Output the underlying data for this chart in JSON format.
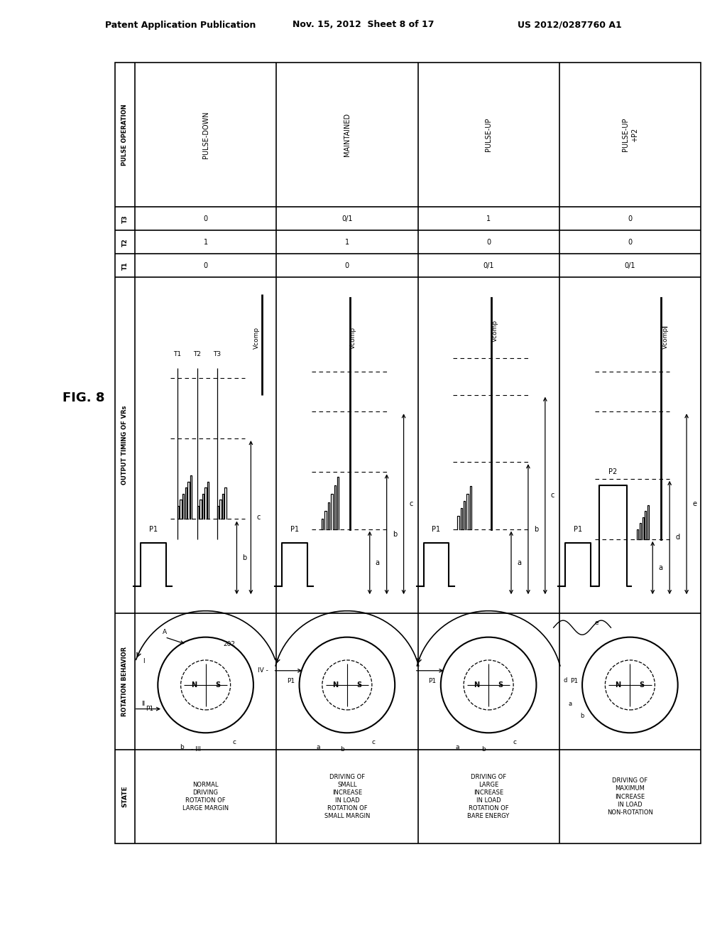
{
  "header_left": "Patent Application Publication",
  "header_center": "Nov. 15, 2012  Sheet 8 of 17",
  "header_right": "US 2012/0287760 A1",
  "fig_label": "FIG. 8",
  "table": {
    "col_headers": [
      "STATE",
      "ROTATION BEHAVIOR",
      "OUTPUT TIMING OF VRs",
      "T1",
      "T2",
      "T3",
      "PULSE OPERATION"
    ],
    "rows": [
      {
        "state": "NORMAL\nDRIVING\nROTATION OF\nLARGE MARGIN",
        "t1": "0",
        "t2": "1",
        "t3": "0",
        "pulse_op": "PULSE-DOWN",
        "timing_levels": [
          "b",
          "c"
        ],
        "timing_markers": [
          "T1",
          "T2",
          "T3"
        ],
        "has_t_markers": true
      },
      {
        "state": "DRIVING OF\nSMALL\nINCREASE\nIN LOAD\nROTATION OF\nSMALL MARGIN",
        "t1": "0",
        "t2": "1",
        "t3": "0/1",
        "pulse_op": "MAINTAINED",
        "timing_levels": [
          "a",
          "b",
          "c"
        ],
        "has_t_markers": false
      },
      {
        "state": "DRIVING OF\nLARGE\nINCREASE\nIN LOAD\nROTATION OF\nBARE ENERGY",
        "t1": "0/1",
        "t2": "0",
        "t3": "1",
        "pulse_op": "PULSE-UP",
        "timing_levels": [
          "a",
          "b",
          "c"
        ],
        "has_t_markers": false
      },
      {
        "state": "DRIVING OF\nMAXIMUM\nINCREASE\nIN LOAD\nNON-ROTATION",
        "t1": "0/1",
        "t2": "0",
        "t3": "0",
        "pulse_op": "PULSE-UP\n+P2",
        "timing_levels": [
          "a",
          "d",
          "e"
        ],
        "has_p2": true,
        "has_t_markers": false
      }
    ]
  }
}
